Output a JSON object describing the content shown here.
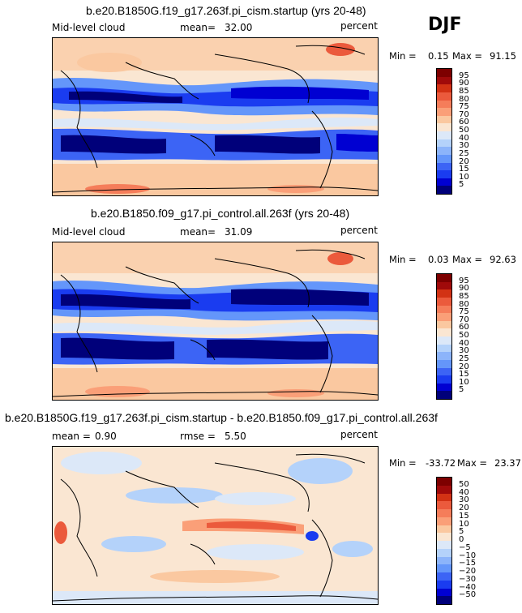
{
  "season": "DJF",
  "chart_data": [
    {
      "type": "heatmap",
      "title": "b.e20.B1850G.f19_g17.263f.pi_cism.startup (yrs 20-48)",
      "variable": "Mid-level cloud",
      "mean_label": "mean=",
      "mean": "32.00",
      "units": "percent",
      "min_label": "Min =",
      "min": "0.15",
      "max_label": "Max =",
      "max": "91.15",
      "levels": [
        "5",
        "10",
        "15",
        "20",
        "25",
        "30",
        "40",
        "50",
        "60",
        "70",
        "75",
        "80",
        "85",
        "90",
        "95"
      ],
      "colors": [
        "#00007a",
        "#0000d2",
        "#1a3cf0",
        "#3c64f5",
        "#6496fa",
        "#8cb4fa",
        "#b4d2fa",
        "#dce8f8",
        "#fae6d2",
        "#fac8a0",
        "#fa9f78",
        "#f57d5a",
        "#eb5a3c",
        "#d23214",
        "#a00a0a",
        "#7d0000"
      ]
    },
    {
      "type": "heatmap",
      "title": "b.e20.B1850.f09_g17.pi_control.all.263f (yrs 20-48)",
      "variable": "Mid-level cloud",
      "mean_label": "mean=",
      "mean": "31.09",
      "units": "percent",
      "min_label": "Min =",
      "min": "0.03",
      "max_label": "Max =",
      "max": "92.63",
      "levels": [
        "5",
        "10",
        "15",
        "20",
        "25",
        "30",
        "40",
        "50",
        "60",
        "70",
        "75",
        "80",
        "85",
        "90",
        "95"
      ],
      "colors": [
        "#00007a",
        "#0000d2",
        "#1a3cf0",
        "#3c64f5",
        "#6496fa",
        "#8cb4fa",
        "#b4d2fa",
        "#dce8f8",
        "#fae6d2",
        "#fac8a0",
        "#fa9f78",
        "#f57d5a",
        "#eb5a3c",
        "#d23214",
        "#a00a0a",
        "#7d0000"
      ]
    },
    {
      "type": "heatmap",
      "title": "b.e20.B1850G.f19_g17.263f.pi_cism.startup - b.e20.B1850.f09_g17.pi_control.all.263f",
      "mean_label": "mean =",
      "mean": "0.90",
      "rmse_label": "rmse =",
      "rmse": "5.50",
      "units": "percent",
      "min_label": "Min =",
      "min": "-33.72",
      "max_label": "Max =",
      "max": "23.37",
      "levels": [
        "−50",
        "−40",
        "−30",
        "−20",
        "−15",
        "−10",
        "−5",
        "0",
        "5",
        "10",
        "15",
        "20",
        "30",
        "40",
        "50"
      ],
      "colors": [
        "#00007a",
        "#0000d2",
        "#1a3cf0",
        "#3c64f5",
        "#6496fa",
        "#8cb4fa",
        "#b4d2fa",
        "#dce8f8",
        "#fae6d2",
        "#fac8a0",
        "#fa9f78",
        "#f57d5a",
        "#eb5a3c",
        "#d23214",
        "#a00a0a",
        "#7d0000"
      ]
    }
  ]
}
